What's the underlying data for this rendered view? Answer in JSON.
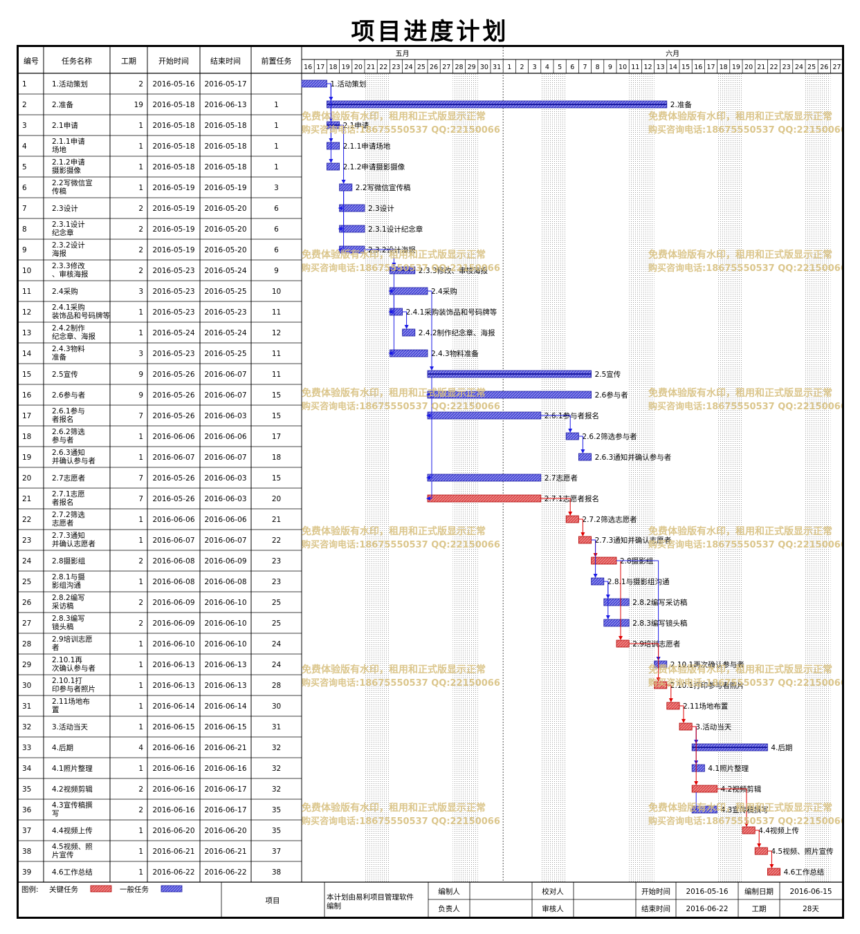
{
  "title": "项目进度计划",
  "columns": {
    "id": "编号",
    "name": "任务名称",
    "duration": "工期",
    "start": "开始时间",
    "end": "结束时间",
    "pred": "前置任务"
  },
  "months": [
    {
      "label": "五月",
      "days": [
        "16",
        "17",
        "18",
        "19",
        "20",
        "21",
        "22",
        "23",
        "24",
        "25",
        "26",
        "27",
        "28",
        "29",
        "30",
        "31"
      ]
    },
    {
      "label": "六月",
      "days": [
        "1",
        "2",
        "3",
        "4",
        "5",
        "6",
        "7",
        "8",
        "9",
        "10",
        "11",
        "12",
        "13",
        "14",
        "15",
        "16",
        "17",
        "18",
        "19",
        "20",
        "21",
        "22",
        "23",
        "24",
        "25",
        "26",
        "27"
      ]
    }
  ],
  "colors": {
    "critical": "#e05050",
    "normal": "#4a4ad8",
    "link_blue": "#1a1ae6",
    "link_red": "#e00000",
    "watermark": "#d8c080"
  },
  "chart_data": {
    "type": "gantt",
    "x_range": [
      "2016-05-16",
      "2016-06-27"
    ],
    "tasks": [
      {
        "id": "1",
        "name": "1.活动策划",
        "dur": "2",
        "start": "2016-05-16",
        "end": "2016-05-17",
        "pred": "",
        "label": "1.活动策划",
        "type": "normal"
      },
      {
        "id": "2",
        "name": "2.准备",
        "dur": "19",
        "start": "2016-05-18",
        "end": "2016-06-13",
        "pred": "1",
        "label": "2.准备",
        "type": "normal",
        "summary": true
      },
      {
        "id": "3",
        "name": "2.1申请",
        "dur": "1",
        "start": "2016-05-18",
        "end": "2016-05-18",
        "pred": "1",
        "label": "2.1申请",
        "type": "normal",
        "summary": true
      },
      {
        "id": "4",
        "name": "2.1.1申请场地",
        "dur": "1",
        "start": "2016-05-18",
        "end": "2016-05-18",
        "pred": "1",
        "label": "2.1.1申请场地",
        "type": "normal"
      },
      {
        "id": "5",
        "name": "2.1.2申请摄影摄像",
        "dur": "1",
        "start": "2016-05-18",
        "end": "2016-05-18",
        "pred": "1",
        "label": "2.1.2申请摄影摄像",
        "type": "normal"
      },
      {
        "id": "6",
        "name": "2.2写微信宣传稿",
        "dur": "1",
        "start": "2016-05-19",
        "end": "2016-05-19",
        "pred": "3",
        "label": "2.2写微信宣传稿",
        "type": "normal"
      },
      {
        "id": "7",
        "name": "2.3设计",
        "dur": "2",
        "start": "2016-05-19",
        "end": "2016-05-20",
        "pred": "6",
        "label": "2.3设计",
        "type": "normal"
      },
      {
        "id": "8",
        "name": "2.3.1设计纪念章",
        "dur": "2",
        "start": "2016-05-19",
        "end": "2016-05-20",
        "pred": "6",
        "label": "2.3.1设计纪念章",
        "type": "normal"
      },
      {
        "id": "9",
        "name": "2.3.2设计海报",
        "dur": "2",
        "start": "2016-05-19",
        "end": "2016-05-20",
        "pred": "6",
        "label": "2.3.2设计海报",
        "type": "normal"
      },
      {
        "id": "10",
        "name": "2.3.3修改、审核海报",
        "dur": "2",
        "start": "2016-05-23",
        "end": "2016-05-24",
        "pred": "9",
        "label": "2.3.3修改、审核海报",
        "type": "normal",
        "summary": true
      },
      {
        "id": "11",
        "name": "2.4采购",
        "dur": "3",
        "start": "2016-05-23",
        "end": "2016-05-25",
        "pred": "10",
        "label": "2.4采购",
        "type": "normal"
      },
      {
        "id": "12",
        "name": "2.4.1采购装饰品和号码牌等",
        "dur": "1",
        "start": "2016-05-23",
        "end": "2016-05-23",
        "pred": "11",
        "label": "2.4.1采购装饰品和号码牌等",
        "type": "normal"
      },
      {
        "id": "13",
        "name": "2.4.2制作纪念章、海报",
        "dur": "1",
        "start": "2016-05-24",
        "end": "2016-05-24",
        "pred": "12",
        "label": "2.4.2制作纪念章、海报",
        "type": "normal"
      },
      {
        "id": "14",
        "name": "2.4.3物料准备",
        "dur": "3",
        "start": "2016-05-23",
        "end": "2016-05-25",
        "pred": "11",
        "label": "2.4.3物料准备",
        "type": "normal"
      },
      {
        "id": "15",
        "name": "2.5宣传",
        "dur": "9",
        "start": "2016-05-26",
        "end": "2016-06-07",
        "pred": "11",
        "label": "2.5宣传",
        "type": "normal",
        "summary": true
      },
      {
        "id": "16",
        "name": "2.6参与者",
        "dur": "9",
        "start": "2016-05-26",
        "end": "2016-06-07",
        "pred": "15",
        "label": "2.6参与者",
        "type": "normal"
      },
      {
        "id": "17",
        "name": "2.6.1参与者报名",
        "dur": "7",
        "start": "2016-05-26",
        "end": "2016-06-03",
        "pred": "15",
        "label": "2.6.1参与者报名",
        "type": "normal"
      },
      {
        "id": "18",
        "name": "2.6.2筛选参与者",
        "dur": "1",
        "start": "2016-06-06",
        "end": "2016-06-06",
        "pred": "17",
        "label": "2.6.2筛选参与者",
        "type": "normal"
      },
      {
        "id": "19",
        "name": "2.6.3通知并确认参与者",
        "dur": "1",
        "start": "2016-06-07",
        "end": "2016-06-07",
        "pred": "18",
        "label": "2.6.3通知并确认参与者",
        "type": "normal"
      },
      {
        "id": "20",
        "name": "2.7志愿者",
        "dur": "7",
        "start": "2016-05-26",
        "end": "2016-06-03",
        "pred": "15",
        "label": "2.7志愿者",
        "type": "normal"
      },
      {
        "id": "21",
        "name": "2.7.1志愿者报名",
        "dur": "7",
        "start": "2016-05-26",
        "end": "2016-06-03",
        "pred": "20",
        "label": "2.7.1志愿者报名",
        "type": "critical"
      },
      {
        "id": "22",
        "name": "2.7.2筛选志愿者",
        "dur": "1",
        "start": "2016-06-06",
        "end": "2016-06-06",
        "pred": "21",
        "label": "2.7.2筛选志愿者",
        "type": "critical"
      },
      {
        "id": "23",
        "name": "2.7.3通知并确认志愿者",
        "dur": "1",
        "start": "2016-06-07",
        "end": "2016-06-07",
        "pred": "22",
        "label": "2.7.3通知并确认志愿者",
        "type": "critical"
      },
      {
        "id": "24",
        "name": "2.8摄影组",
        "dur": "2",
        "start": "2016-06-08",
        "end": "2016-06-09",
        "pred": "23",
        "label": "2.8摄影组",
        "type": "critical"
      },
      {
        "id": "25",
        "name": "2.8.1与摄影组沟通",
        "dur": "1",
        "start": "2016-06-08",
        "end": "2016-06-08",
        "pred": "23",
        "label": "2.8.1与摄影组沟通",
        "type": "normal"
      },
      {
        "id": "26",
        "name": "2.8.2编写采访稿",
        "dur": "2",
        "start": "2016-06-09",
        "end": "2016-06-10",
        "pred": "25",
        "label": "2.8.2编写采访稿",
        "type": "normal"
      },
      {
        "id": "27",
        "name": "2.8.3编写镜头稿",
        "dur": "2",
        "start": "2016-06-09",
        "end": "2016-06-10",
        "pred": "25",
        "label": "2.8.3编写镜头稿",
        "type": "normal"
      },
      {
        "id": "28",
        "name": "2.9培训志愿者",
        "dur": "1",
        "start": "2016-06-10",
        "end": "2016-06-10",
        "pred": "24",
        "label": "2.9培训志愿者",
        "type": "critical"
      },
      {
        "id": "29",
        "name": "2.10.1再次确认参与者",
        "dur": "1",
        "start": "2016-06-13",
        "end": "2016-06-13",
        "pred": "24",
        "label": "2.10.1再次确认参与者",
        "type": "normal"
      },
      {
        "id": "30",
        "name": "2.10.1打印参与者照片",
        "dur": "1",
        "start": "2016-06-13",
        "end": "2016-06-13",
        "pred": "28",
        "label": "2.10.1打印参与者照片",
        "type": "critical"
      },
      {
        "id": "31",
        "name": "2.11场地布置",
        "dur": "1",
        "start": "2016-06-14",
        "end": "2016-06-14",
        "pred": "30",
        "label": "2.11场地布置",
        "type": "critical"
      },
      {
        "id": "32",
        "name": "3.活动当天",
        "dur": "1",
        "start": "2016-06-15",
        "end": "2016-06-15",
        "pred": "31",
        "label": "3.活动当天",
        "type": "critical"
      },
      {
        "id": "33",
        "name": "4.后期",
        "dur": "4",
        "start": "2016-06-16",
        "end": "2016-06-21",
        "pred": "32",
        "label": "4.后期",
        "type": "normal",
        "summary": true
      },
      {
        "id": "34",
        "name": "4.1照片整理",
        "dur": "1",
        "start": "2016-06-16",
        "end": "2016-06-16",
        "pred": "32",
        "label": "4.1照片整理",
        "type": "normal"
      },
      {
        "id": "35",
        "name": "4.2视频剪辑",
        "dur": "2",
        "start": "2016-06-16",
        "end": "2016-06-17",
        "pred": "32",
        "label": "4.2视频剪辑",
        "type": "critical"
      },
      {
        "id": "36",
        "name": "4.3宣传稿撰写",
        "dur": "2",
        "start": "2016-06-16",
        "end": "2016-06-17",
        "pred": "35",
        "label": "4.3宣传稿撰写",
        "type": "normal"
      },
      {
        "id": "37",
        "name": "4.4视频上传",
        "dur": "1",
        "start": "2016-06-20",
        "end": "2016-06-20",
        "pred": "35",
        "label": "4.4视频上传",
        "type": "critical"
      },
      {
        "id": "38",
        "name": "4.5视频、照片宣传",
        "dur": "1",
        "start": "2016-06-21",
        "end": "2016-06-21",
        "pred": "37",
        "label": "4.5视频、照片宣传",
        "type": "critical"
      },
      {
        "id": "39",
        "name": "4.6工作总结",
        "dur": "1",
        "start": "2016-06-22",
        "end": "2016-06-22",
        "pred": "38",
        "label": "4.6工作总结",
        "type": "critical"
      }
    ]
  },
  "watermark": {
    "line1": "免费体验版有水印，租用和正式版显示正常",
    "line2": "购买咨询电话:18675550537 QQ:22150066"
  },
  "footer": {
    "legend_label": "图例:",
    "critical_label": "关键任务",
    "normal_label": "一般任务",
    "project_label": "项目",
    "software_note": "本计划由易利项目管理软件编制",
    "editor_label": "编制人",
    "owner_label": "负责人",
    "checker_label": "校对人",
    "reviewer_label": "审核人",
    "start_label": "开始时间",
    "start_value": "2016-05-16",
    "end_label": "结束时间",
    "end_value": "2016-06-22",
    "date_label": "编制日期",
    "date_value": "2016-06-15",
    "duration_label": "工期",
    "duration_value": "28天"
  }
}
